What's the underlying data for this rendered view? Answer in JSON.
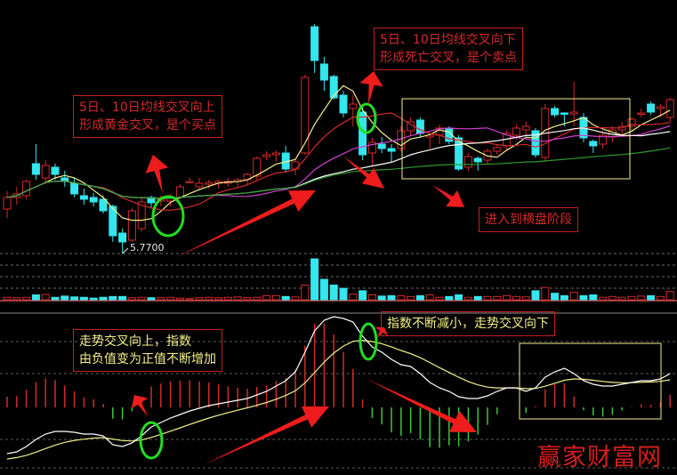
{
  "chart_data": {
    "type": "candlestick",
    "panels": [
      "price",
      "volume",
      "macd"
    ],
    "price_label": "5.7700",
    "candles": [
      [
        6.27,
        6.47,
        6.17,
        6.4
      ],
      [
        6.4,
        6.52,
        6.32,
        6.44
      ],
      [
        6.42,
        6.6,
        6.38,
        6.58
      ],
      [
        6.78,
        7.0,
        6.6,
        6.66
      ],
      [
        6.62,
        6.82,
        6.55,
        6.76
      ],
      [
        6.74,
        6.78,
        6.6,
        6.66
      ],
      [
        6.62,
        6.7,
        6.52,
        6.58
      ],
      [
        6.56,
        6.62,
        6.4,
        6.44
      ],
      [
        6.42,
        6.5,
        6.32,
        6.38
      ],
      [
        6.4,
        6.45,
        6.3,
        6.35
      ],
      [
        6.38,
        6.42,
        6.22,
        6.25
      ],
      [
        6.3,
        6.32,
        5.9,
        5.97
      ],
      [
        6.0,
        6.05,
        5.77,
        5.9
      ],
      [
        5.92,
        6.28,
        5.9,
        6.25
      ],
      [
        6.05,
        6.4,
        6.02,
        6.35
      ],
      [
        6.4,
        6.42,
        6.28,
        6.34
      ],
      [
        6.36,
        6.42,
        6.3,
        6.38
      ],
      [
        6.36,
        6.44,
        6.3,
        6.4
      ],
      [
        6.4,
        6.55,
        6.38,
        6.52
      ],
      [
        6.58,
        6.62,
        6.56,
        6.58
      ],
      [
        6.52,
        6.62,
        6.48,
        6.56
      ],
      [
        6.55,
        6.6,
        6.5,
        6.57
      ],
      [
        6.56,
        6.6,
        6.5,
        6.58
      ],
      [
        6.56,
        6.62,
        6.52,
        6.58
      ],
      [
        6.58,
        6.62,
        6.52,
        6.6
      ],
      [
        6.6,
        6.68,
        6.55,
        6.66
      ],
      [
        6.64,
        6.86,
        6.6,
        6.84
      ],
      [
        6.86,
        6.92,
        6.82,
        6.88
      ],
      [
        6.88,
        6.93,
        6.8,
        6.9
      ],
      [
        6.9,
        6.98,
        6.68,
        6.72
      ],
      [
        6.72,
        6.82,
        6.65,
        6.8
      ],
      [
        6.9,
        7.78,
        6.88,
        7.75
      ],
      [
        8.32,
        8.35,
        7.8,
        7.94
      ],
      [
        7.9,
        7.98,
        7.6,
        7.72
      ],
      [
        7.76,
        7.78,
        7.5,
        7.52
      ],
      [
        7.55,
        7.6,
        7.3,
        7.35
      ],
      [
        7.4,
        7.55,
        7.2,
        7.45
      ],
      [
        7.36,
        7.42,
        6.82,
        6.88
      ],
      [
        6.9,
        7.07,
        6.75,
        7.02
      ],
      [
        7.0,
        7.08,
        6.9,
        6.95
      ],
      [
        6.95,
        7.0,
        6.8,
        6.92
      ],
      [
        6.95,
        7.2,
        6.92,
        7.15
      ],
      [
        7.15,
        7.3,
        7.1,
        7.25
      ],
      [
        7.27,
        7.3,
        7.08,
        7.12
      ],
      [
        7.08,
        7.12,
        6.95,
        7.1
      ],
      [
        7.1,
        7.22,
        7.0,
        7.18
      ],
      [
        7.18,
        7.2,
        7.0,
        7.03
      ],
      [
        7.07,
        7.1,
        6.7,
        6.72
      ],
      [
        6.74,
        6.9,
        6.7,
        6.86
      ],
      [
        6.84,
        6.86,
        6.7,
        6.8
      ],
      [
        6.82,
        6.95,
        6.78,
        6.92
      ],
      [
        6.92,
        7.0,
        6.88,
        6.96
      ],
      [
        6.98,
        7.16,
        6.92,
        7.12
      ],
      [
        7.1,
        7.22,
        7.05,
        7.18
      ],
      [
        7.16,
        7.25,
        7.1,
        7.2
      ],
      [
        7.15,
        7.18,
        6.85,
        6.88
      ],
      [
        6.85,
        7.45,
        6.8,
        7.4
      ],
      [
        7.4,
        7.43,
        7.3,
        7.33
      ],
      [
        7.35,
        7.36,
        7.2,
        7.34
      ],
      [
        7.34,
        7.7,
        7.2,
        7.36
      ],
      [
        7.3,
        7.35,
        7.02,
        7.07
      ],
      [
        7.03,
        7.05,
        6.9,
        6.98
      ],
      [
        7.0,
        7.15,
        6.95,
        7.1
      ],
      [
        7.08,
        7.2,
        7.02,
        7.16
      ],
      [
        7.16,
        7.25,
        7.1,
        7.2
      ],
      [
        7.2,
        7.3,
        7.15,
        7.28
      ],
      [
        7.35,
        7.4,
        7.3,
        7.35
      ],
      [
        7.45,
        7.48,
        7.33,
        7.36
      ],
      [
        7.4,
        7.45,
        7.3,
        7.42
      ],
      [
        7.3,
        7.52,
        7.25,
        7.5
      ]
    ],
    "moving_averages": [
      {
        "period": 5,
        "color": "#f3f08a"
      },
      {
        "period": 10,
        "color": "#d42a2a"
      },
      {
        "period": 20,
        "color": "#d040d0"
      },
      {
        "period": 30,
        "color": "#ffffff"
      },
      {
        "period": 60,
        "color": "#2e9a2e"
      }
    ],
    "volume": [
      6,
      5,
      6,
      12,
      13,
      6,
      9,
      7,
      6,
      4,
      6,
      8,
      8,
      5,
      6,
      5,
      5,
      6,
      4,
      3,
      5,
      6,
      5,
      6,
      7,
      5,
      6,
      10,
      10,
      8,
      7,
      36,
      100,
      50,
      36,
      28,
      14,
      22,
      12,
      9,
      10,
      10,
      8,
      10,
      12,
      6,
      8,
      12,
      6,
      8,
      8,
      8,
      10,
      8,
      7,
      22,
      30,
      16,
      10,
      18,
      10,
      12,
      6,
      8,
      6,
      8,
      9,
      10,
      8,
      20
    ],
    "dif": [
      -0.52,
      -0.5,
      -0.44,
      -0.36,
      -0.3,
      -0.27,
      -0.27,
      -0.28,
      -0.3,
      -0.3,
      -0.32,
      -0.42,
      -0.44,
      -0.4,
      -0.32,
      -0.22,
      -0.17,
      -0.12,
      -0.08,
      -0.04,
      -0.01,
      0.02,
      0.04,
      0.06,
      0.08,
      0.1,
      0.14,
      0.18,
      0.24,
      0.3,
      0.4,
      0.62,
      0.86,
      0.98,
      1.02,
      1.0,
      0.96,
      0.8,
      0.68,
      0.62,
      0.54,
      0.48,
      0.46,
      0.38,
      0.28,
      0.22,
      0.18,
      0.12,
      0.1,
      0.1,
      0.13,
      0.18,
      0.22,
      0.22,
      0.18,
      0.22,
      0.34,
      0.4,
      0.44,
      0.38,
      0.3,
      0.26,
      0.24,
      0.24,
      0.26,
      0.28,
      0.3,
      0.3,
      0.32,
      0.38
    ],
    "colors": {
      "up": "#d42a2a",
      "down": "#34e6ee",
      "dif": "#ffffff",
      "dea": "#f3f08a",
      "hist_pos": "#d42a2a",
      "hist_neg": "#3ec43e"
    }
  },
  "annotations": {
    "golden_cross": [
      "5日、10日均线交叉向上",
      "形成黄金交叉，是个买点"
    ],
    "death_cross": [
      "5日、10日均线交叉向下",
      "形成死亡交叉，是个卖点"
    ],
    "consolidation": "进入到横盘阶段",
    "macd_up": [
      "走势交叉向上，指数",
      "由负值变为正值不断增加"
    ],
    "macd_down": "指数不断减小，走势交叉向下"
  },
  "watermark": "赢家财富网"
}
